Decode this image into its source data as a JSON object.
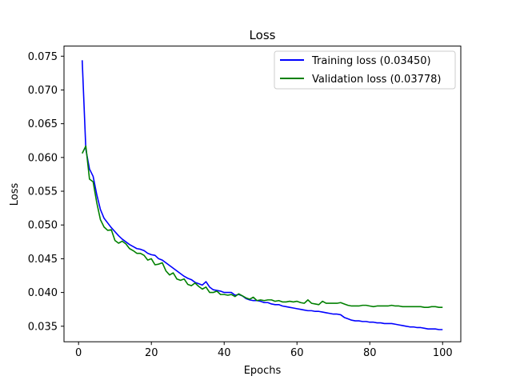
{
  "chart_data": {
    "type": "line",
    "title": "Loss",
    "xlabel": "Epochs",
    "ylabel": "Loss",
    "xlim": [
      -4,
      105
    ],
    "ylim": [
      0.0327,
      0.0765
    ],
    "xticks": [
      0,
      20,
      40,
      60,
      80,
      100
    ],
    "xtick_labels": [
      "0",
      "20",
      "40",
      "60",
      "80",
      "100"
    ],
    "yticks": [
      0.035,
      0.04,
      0.045,
      0.05,
      0.055,
      0.06,
      0.065,
      0.07,
      0.075
    ],
    "ytick_labels": [
      "0.035",
      "0.040",
      "0.045",
      "0.050",
      "0.055",
      "0.060",
      "0.065",
      "0.070",
      "0.075"
    ],
    "grid": false,
    "legend": "top-right",
    "series": [
      {
        "name": "Training loss (0.03450)",
        "color": "#0000ff",
        "x": [
          1,
          2,
          3,
          4,
          5,
          6,
          7,
          8,
          9,
          10,
          11,
          12,
          13,
          14,
          15,
          16,
          17,
          18,
          19,
          20,
          21,
          22,
          23,
          24,
          25,
          26,
          27,
          28,
          29,
          30,
          31,
          32,
          33,
          34,
          35,
          36,
          37,
          38,
          39,
          40,
          41,
          42,
          43,
          44,
          45,
          46,
          47,
          48,
          49,
          50,
          51,
          52,
          53,
          54,
          55,
          56,
          57,
          58,
          59,
          60,
          61,
          62,
          63,
          64,
          65,
          66,
          67,
          68,
          69,
          70,
          71,
          72,
          73,
          74,
          75,
          76,
          77,
          78,
          79,
          80,
          81,
          82,
          83,
          84,
          85,
          86,
          87,
          88,
          89,
          90,
          91,
          92,
          93,
          94,
          95,
          96,
          97,
          98,
          99,
          100
        ],
        "values": [
          0.0744,
          0.0612,
          0.0583,
          0.0572,
          0.0545,
          0.0523,
          0.051,
          0.0503,
          0.0496,
          0.049,
          0.0484,
          0.0479,
          0.0475,
          0.0471,
          0.0468,
          0.0465,
          0.0464,
          0.0462,
          0.0458,
          0.0456,
          0.0455,
          0.045,
          0.0448,
          0.0444,
          0.044,
          0.0436,
          0.0432,
          0.0428,
          0.0424,
          0.0421,
          0.0419,
          0.0415,
          0.0413,
          0.0411,
          0.0416,
          0.0408,
          0.0404,
          0.0403,
          0.0402,
          0.04,
          0.04,
          0.04,
          0.0396,
          0.0397,
          0.0395,
          0.0391,
          0.0389,
          0.0388,
          0.0388,
          0.0387,
          0.0385,
          0.0385,
          0.0383,
          0.0382,
          0.0382,
          0.038,
          0.0379,
          0.0378,
          0.0377,
          0.0376,
          0.0375,
          0.0374,
          0.0373,
          0.0373,
          0.0372,
          0.0372,
          0.0371,
          0.037,
          0.0369,
          0.0368,
          0.0368,
          0.0367,
          0.0363,
          0.0361,
          0.0359,
          0.0358,
          0.0358,
          0.0357,
          0.0357,
          0.0356,
          0.0356,
          0.0355,
          0.0355,
          0.0354,
          0.0354,
          0.0354,
          0.0353,
          0.0352,
          0.0351,
          0.035,
          0.0349,
          0.0349,
          0.0348,
          0.0348,
          0.0347,
          0.0346,
          0.0346,
          0.0346,
          0.0345,
          0.0345
        ]
      },
      {
        "name": "Validation loss (0.03778)",
        "color": "#008000",
        "x": [
          1,
          2,
          3,
          4,
          5,
          6,
          7,
          8,
          9,
          10,
          11,
          12,
          13,
          14,
          15,
          16,
          17,
          18,
          19,
          20,
          21,
          22,
          23,
          24,
          25,
          26,
          27,
          28,
          29,
          30,
          31,
          32,
          33,
          34,
          35,
          36,
          37,
          38,
          39,
          40,
          41,
          42,
          43,
          44,
          45,
          46,
          47,
          48,
          49,
          50,
          51,
          52,
          53,
          54,
          55,
          56,
          57,
          58,
          59,
          60,
          61,
          62,
          63,
          64,
          65,
          66,
          67,
          68,
          69,
          70,
          71,
          72,
          73,
          74,
          75,
          76,
          77,
          78,
          79,
          80,
          81,
          82,
          83,
          84,
          85,
          86,
          87,
          88,
          89,
          90,
          91,
          92,
          93,
          94,
          95,
          96,
          97,
          98,
          99,
          100
        ],
        "values": [
          0.0606,
          0.0617,
          0.0568,
          0.0564,
          0.0533,
          0.0508,
          0.0497,
          0.0492,
          0.0493,
          0.0477,
          0.0473,
          0.0476,
          0.0472,
          0.0465,
          0.0462,
          0.0458,
          0.0458,
          0.0455,
          0.0448,
          0.045,
          0.0441,
          0.0442,
          0.0444,
          0.0432,
          0.0426,
          0.0429,
          0.042,
          0.0418,
          0.042,
          0.0412,
          0.041,
          0.0414,
          0.0409,
          0.0405,
          0.0408,
          0.04,
          0.04,
          0.0402,
          0.0397,
          0.0397,
          0.0396,
          0.0397,
          0.0394,
          0.0398,
          0.0395,
          0.0392,
          0.039,
          0.0393,
          0.0388,
          0.0389,
          0.0388,
          0.0389,
          0.0389,
          0.0387,
          0.0388,
          0.0386,
          0.0386,
          0.0387,
          0.0386,
          0.0387,
          0.0385,
          0.0384,
          0.0389,
          0.0384,
          0.0383,
          0.0382,
          0.0387,
          0.0384,
          0.0384,
          0.0384,
          0.0384,
          0.0385,
          0.0383,
          0.0381,
          0.038,
          0.038,
          0.038,
          0.0381,
          0.0381,
          0.038,
          0.0379,
          0.038,
          0.038,
          0.038,
          0.038,
          0.0381,
          0.038,
          0.038,
          0.0379,
          0.0379,
          0.0379,
          0.0379,
          0.0379,
          0.0379,
          0.0378,
          0.0378,
          0.0379,
          0.0379,
          0.0378,
          0.0378
        ]
      }
    ]
  }
}
